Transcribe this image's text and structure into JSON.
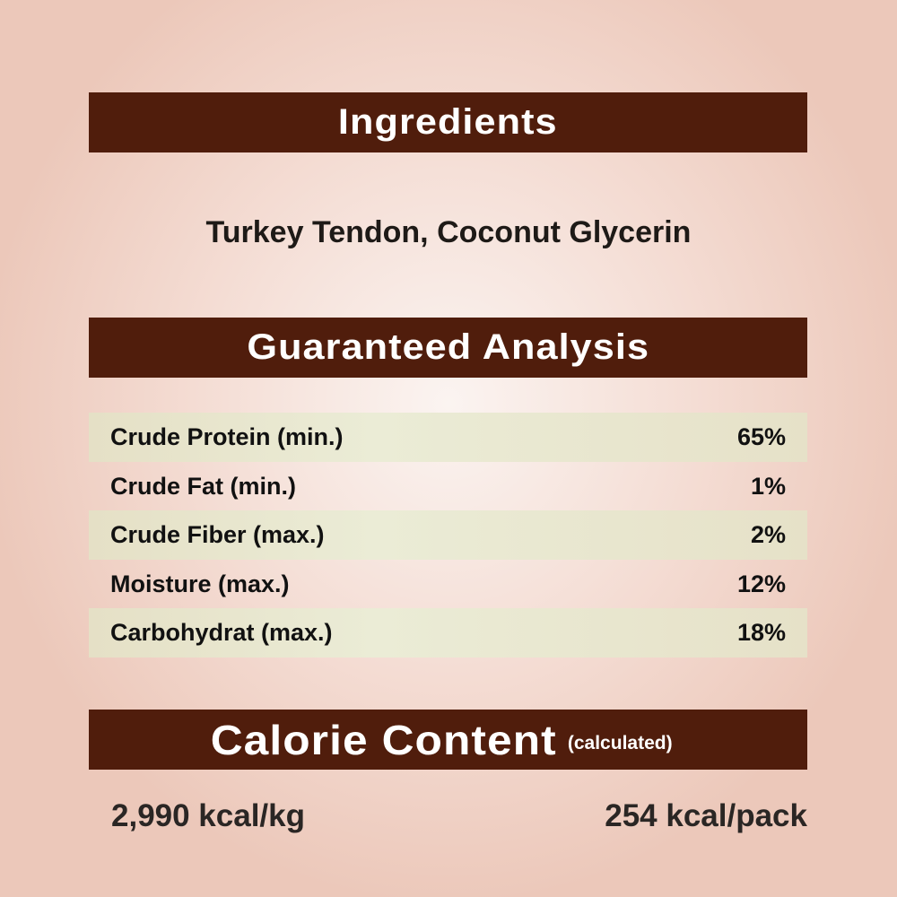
{
  "ingredients": {
    "title": "Ingredients",
    "text": "Turkey Tendon, Coconut Glycerin"
  },
  "analysis": {
    "title": "Guaranteed Analysis",
    "rows": [
      {
        "label": "Crude Protein (min.)",
        "value": "65%"
      },
      {
        "label": "Crude Fat (min.)",
        "value": "1%"
      },
      {
        "label": "Crude Fiber (max.)",
        "value": "2%"
      },
      {
        "label": "Moisture (max.)",
        "value": "12%"
      },
      {
        "label": "Carbohydrat (max.)",
        "value": "18%"
      }
    ]
  },
  "calories": {
    "title": "Calorie Content",
    "subtitle": "(calculated)",
    "per_kg": "2,990 kcal/kg",
    "per_pack": "254 kcal/pack"
  },
  "colors": {
    "banner": "#501d0c",
    "stripe": "#e5e0c6"
  }
}
